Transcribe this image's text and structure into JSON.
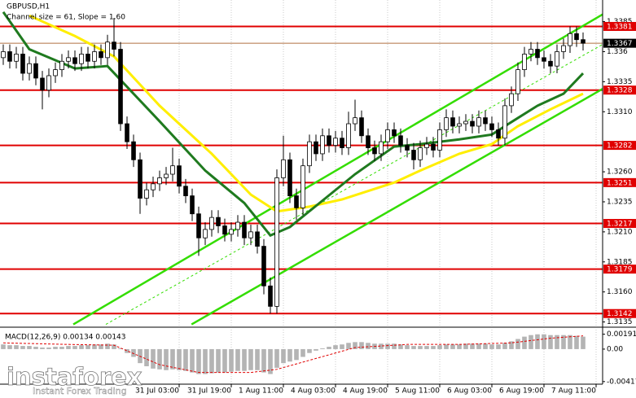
{
  "chart_data": {
    "type": "candlestick",
    "title": "GBPUSD,H1",
    "subtitle": "Channel size = 61, Slope = 1.60",
    "color": "#000000",
    "xlim": [
      -0.5,
      92
    ],
    "ylim": [
      1.3132,
      1.3403
    ],
    "yticks": [
      1.3385,
      1.336,
      1.3335,
      {
        "value": 1.331,
        "label": "1.3310"
      },
      {
        "value": 1.326,
        "label": "1.3260"
      },
      1.3235,
      {
        "value": 1.321,
        "label": "1.3210"
      },
      1.3185,
      {
        "value": 1.316,
        "label": "1.3160"
      },
      1.3135
    ],
    "xticks": [
      {
        "value": 27,
        "label": "31 Jul 03:00"
      },
      {
        "value": 35,
        "label": "31 Jul 19:00"
      },
      {
        "value": 43,
        "label": "1 Aug 11:00"
      },
      {
        "value": 51,
        "label": "4 Aug 03:00"
      },
      {
        "value": 59,
        "label": "4 Aug 19:00"
      },
      {
        "value": 67,
        "label": "5 Aug 11:00"
      },
      {
        "value": 75,
        "label": "6 Aug 03:00"
      },
      {
        "value": 83,
        "label": "6 Aug 19:00"
      },
      {
        "value": 91,
        "label": "7 Aug 11:00"
      }
    ],
    "grid": true,
    "levels": [
      1.3381,
      1.3328,
      1.3282,
      1.3251,
      1.3217,
      1.3179,
      1.3142
    ],
    "level_color": "#e00000",
    "last_price": 1.3367,
    "open": [
      1.3355,
      1.336,
      1.3352,
      1.3358,
      1.3342,
      1.335,
      1.3338,
      1.3328,
      1.334,
      1.3345,
      1.3352,
      1.3355,
      1.335,
      1.3358,
      1.3352,
      1.336,
      1.3355,
      1.3368,
      1.3362,
      1.33,
      1.3285,
      1.327,
      1.3238,
      1.3245,
      1.325,
      1.3255,
      1.3258,
      1.3265,
      1.3248,
      1.324,
      1.3225,
      1.3205,
      1.3212,
      1.3222,
      1.3215,
      1.3208,
      1.3212,
      1.3218,
      1.3205,
      1.321,
      1.3198,
      1.3165,
      1.3148,
      1.3255,
      1.327,
      1.324,
      1.323,
      1.3265,
      1.3285,
      1.3275,
      1.329,
      1.3282,
      1.3288,
      1.328,
      1.33,
      1.3305,
      1.329,
      1.328,
      1.3275,
      1.3285,
      1.3295,
      1.329,
      1.3282,
      1.3278,
      1.327,
      1.328,
      1.3283,
      1.3278,
      1.3295,
      1.3305,
      1.3298,
      1.33,
      1.3302,
      1.3298,
      1.3305,
      1.33,
      1.3295,
      1.3288,
      1.3315,
      1.3325,
      1.3345,
      1.3358,
      1.3362,
      1.3355,
      1.3352,
      1.3348,
      1.336,
      1.3365,
      1.3375,
      1.337
    ],
    "high": [
      1.3366,
      1.3366,
      1.3364,
      1.3364,
      1.3356,
      1.3356,
      1.3344,
      1.3346,
      1.3351,
      1.3358,
      1.3361,
      1.3361,
      1.3364,
      1.3364,
      1.3366,
      1.3366,
      1.3374,
      1.3388,
      1.3368,
      1.3306,
      1.3291,
      1.3276,
      1.3251,
      1.3256,
      1.3261,
      1.3264,
      1.328,
      1.3271,
      1.3254,
      1.3246,
      1.3231,
      1.3218,
      1.3228,
      1.3228,
      1.3221,
      1.3218,
      1.3224,
      1.3224,
      1.3216,
      1.3216,
      1.3204,
      1.3172,
      1.3262,
      1.329,
      1.3276,
      1.3246,
      1.3271,
      1.3291,
      1.3291,
      1.3296,
      1.3296,
      1.3294,
      1.3294,
      1.331,
      1.332,
      1.3311,
      1.3296,
      1.3286,
      1.3291,
      1.3301,
      1.3301,
      1.3296,
      1.3288,
      1.3284,
      1.3286,
      1.3289,
      1.3289,
      1.3301,
      1.3312,
      1.3311,
      1.3306,
      1.3308,
      1.3308,
      1.3311,
      1.3311,
      1.3306,
      1.3301,
      1.3321,
      1.3331,
      1.3351,
      1.3364,
      1.3368,
      1.3368,
      1.3361,
      1.3358,
      1.3366,
      1.3371,
      1.3381,
      1.3381,
      1.3376
    ],
    "low": [
      1.3349,
      1.3346,
      1.3346,
      1.3336,
      1.3336,
      1.3332,
      1.3312,
      1.3322,
      1.3334,
      1.3339,
      1.3346,
      1.3344,
      1.3344,
      1.3346,
      1.3346,
      1.3349,
      1.3349,
      1.3356,
      1.3294,
      1.3279,
      1.3264,
      1.3225,
      1.3232,
      1.3239,
      1.3244,
      1.3249,
      1.3252,
      1.3242,
      1.3234,
      1.3219,
      1.319,
      1.3199,
      1.3206,
      1.3209,
      1.3202,
      1.3202,
      1.3206,
      1.3199,
      1.3199,
      1.3192,
      1.3158,
      1.3142,
      1.3142,
      1.3248,
      1.3234,
      1.322,
      1.3224,
      1.3259,
      1.3269,
      1.3269,
      1.3276,
      1.3276,
      1.3274,
      1.3274,
      1.3294,
      1.3284,
      1.3274,
      1.3269,
      1.3269,
      1.3279,
      1.3284,
      1.3276,
      1.3272,
      1.3262,
      1.3264,
      1.3274,
      1.3272,
      1.3272,
      1.3289,
      1.3292,
      1.3292,
      1.3294,
      1.3292,
      1.3292,
      1.3294,
      1.3289,
      1.3282,
      1.3282,
      1.3309,
      1.3319,
      1.3339,
      1.3352,
      1.3349,
      1.3346,
      1.3342,
      1.3342,
      1.3354,
      1.3359,
      1.3364,
      1.3361
    ],
    "close": [
      1.336,
      1.3352,
      1.3358,
      1.3342,
      1.335,
      1.3338,
      1.3328,
      1.334,
      1.3345,
      1.3352,
      1.3355,
      1.335,
      1.3358,
      1.3352,
      1.336,
      1.3355,
      1.3368,
      1.3362,
      1.33,
      1.3285,
      1.327,
      1.3238,
      1.3245,
      1.325,
      1.3255,
      1.3258,
      1.3265,
      1.3248,
      1.324,
      1.3225,
      1.3205,
      1.3212,
      1.3222,
      1.3215,
      1.3208,
      1.3212,
      1.3218,
      1.3205,
      1.321,
      1.3198,
      1.3165,
      1.3148,
      1.3255,
      1.327,
      1.324,
      1.323,
      1.3265,
      1.3285,
      1.3275,
      1.329,
      1.3282,
      1.3288,
      1.328,
      1.33,
      1.3305,
      1.329,
      1.328,
      1.3275,
      1.3285,
      1.3295,
      1.329,
      1.3282,
      1.3278,
      1.327,
      1.328,
      1.3283,
      1.3278,
      1.3295,
      1.3305,
      1.3298,
      1.33,
      1.3302,
      1.3298,
      1.3305,
      1.33,
      1.3295,
      1.3288,
      1.3315,
      1.3325,
      1.3345,
      1.3358,
      1.3362,
      1.3355,
      1.3352,
      1.3348,
      1.336,
      1.3365,
      1.3375,
      1.337,
      1.3367
    ],
    "series": [
      {
        "color": "#ffee00",
        "width": 3,
        "x": [
          4,
          11,
          17,
          24,
          32,
          38,
          42,
          47,
          52,
          60,
          64,
          70,
          75,
          79,
          84,
          89
        ],
        "values": [
          1.339,
          1.3373,
          1.3356,
          1.3315,
          1.3275,
          1.3241,
          1.3227,
          1.3231,
          1.3237,
          1.3251,
          1.3261,
          1.3275,
          1.3283,
          1.3298,
          1.3312,
          1.3325
        ]
      },
      {
        "color": "#1f7a1f",
        "width": 3,
        "x": [
          0,
          4,
          11,
          16,
          24,
          31,
          37,
          41,
          44,
          49,
          54,
          60,
          64,
          70,
          75,
          77,
          82,
          86,
          89
        ],
        "values": [
          1.3393,
          1.3362,
          1.3346,
          1.3348,
          1.3302,
          1.3261,
          1.3234,
          1.3207,
          1.3214,
          1.3236,
          1.3258,
          1.3281,
          1.3283,
          1.3287,
          1.3291,
          1.3298,
          1.3315,
          1.3325,
          1.3342
        ]
      }
    ],
    "channel": [
      {
        "color": "#33dd00",
        "x": [
          10.75,
          92
        ],
        "values": [
          1.3133,
          1.3391
        ]
      },
      {
        "color": "#33dd00",
        "x": [
          28.9,
          92
        ],
        "values": [
          1.3133,
          1.3329
        ]
      },
      {
        "color": "#33dd00",
        "dashed": true,
        "x": [
          15.75,
          92
        ],
        "values": [
          1.3133,
          1.3366
        ]
      }
    ],
    "macd": {
      "title": "MACD(12,26,9) 0.00134 0.00143",
      "ylim": [
        -0.0045,
        0.0025
      ],
      "yticks": [
        0.00191,
        {
          "value": 0,
          "label": "0.00"
        },
        -0.00417
      ],
      "color": "#b4b4b4",
      "histogram": [
        0.0006,
        0.0005,
        0.0005,
        0.0004,
        0.0004,
        0.0003,
        0.0002,
        0.0002,
        0.0003,
        0.0003,
        0.0004,
        0.0004,
        0.0005,
        0.0005,
        0.0006,
        0.0006,
        0.0007,
        0.0006,
        0.0001,
        -0.0005,
        -0.001,
        -0.0018,
        -0.0022,
        -0.0025,
        -0.0026,
        -0.0027,
        -0.0026,
        -0.0027,
        -0.0028,
        -0.003,
        -0.0032,
        -0.0032,
        -0.0031,
        -0.003,
        -0.003,
        -0.0029,
        -0.0028,
        -0.0028,
        -0.0027,
        -0.0027,
        -0.003,
        -0.0032,
        -0.0024,
        -0.0018,
        -0.0016,
        -0.0014,
        -0.001,
        -0.0005,
        -0.0002,
        0.0001,
        0.0003,
        0.0005,
        0.0006,
        0.0008,
        0.0009,
        0.0009,
        0.0008,
        0.0007,
        0.0007,
        0.0007,
        0.0007,
        0.0006,
        0.0005,
        0.0004,
        0.0004,
        0.0004,
        0.0004,
        0.0005,
        0.0006,
        0.0006,
        0.0006,
        0.0007,
        0.0007,
        0.0007,
        0.0007,
        0.0006,
        0.0006,
        0.0008,
        0.001,
        0.0013,
        0.0016,
        0.0018,
        0.0019,
        0.0019,
        0.0018,
        0.0018,
        0.0018,
        0.0018,
        0.0017,
        0.0016
      ],
      "signal": {
        "color": "#e00000",
        "x": [
          0,
          10,
          17,
          24,
          30,
          38,
          42,
          48,
          54,
          62,
          70,
          78,
          84,
          89
        ],
        "values": [
          0.0008,
          0.0006,
          0.0005,
          -0.002,
          -0.003,
          -0.003,
          -0.0026,
          -0.0012,
          0.0002,
          0.0006,
          0.0006,
          0.0008,
          0.0014,
          0.0017
        ]
      }
    }
  },
  "watermark": {
    "brand": "instaforex",
    "tagline": "Instant Forex Trading"
  }
}
